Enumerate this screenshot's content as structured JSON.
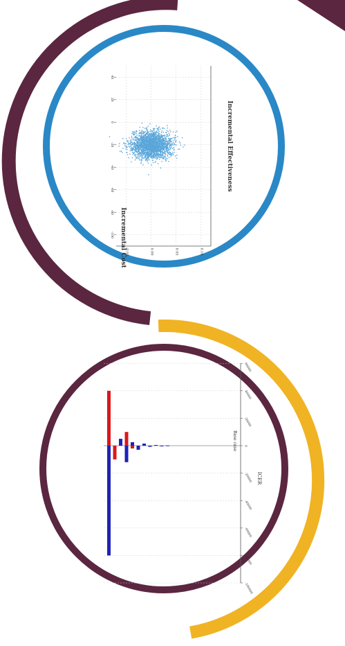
{
  "colors": {
    "ring_top_outer": "#5b2640",
    "ring_top_inner": "#2a88c6",
    "ring_bottom_outer": "#f0b323",
    "ring_bottom_inner": "#5b2640",
    "scatter_point": "#5aa6da",
    "bar_red": "#d7191c",
    "bar_blue": "#1f22b4",
    "grid": "#d0d0d0",
    "axis": "#555555"
  },
  "chart_data": [
    {
      "type": "scatter",
      "orientation": "rotated 90° clockwise",
      "xlabel": "Incremental Effectiveness",
      "ylabel": "Incremental Cost",
      "x_ticks": [
        "-0.05",
        "0.00",
        "0.05",
        "0.10"
      ],
      "y_ticks": [
        "-100",
        "-80",
        "-60",
        "-40",
        "-20",
        "0",
        "20",
        "40"
      ],
      "xlim": [
        -0.07,
        0.12
      ],
      "ylim": [
        -110,
        50
      ],
      "cloud": {
        "center_x": 0.0,
        "center_y": -20,
        "sd_x": 0.02,
        "sd_y": 6,
        "n_points": 2200
      },
      "grid": true
    },
    {
      "type": "bar",
      "subtype": "tornado",
      "orientation": "rotated 90° clockwise",
      "value_axis_label": "ICER",
      "baseline_label": "Base case",
      "baseline": 0,
      "value_ticks": [
        "-100000",
        "-80000",
        "-60000",
        "-40000",
        "-20000",
        "0",
        "20000",
        "40000",
        "60000"
      ],
      "series": [
        {
          "name": "red",
          "values": [
            40000,
            -10000,
            10000,
            -2000
          ]
        },
        {
          "name": "blue",
          "values": [
            -80000,
            5000,
            -12000,
            2500,
            -3000,
            1500,
            -800,
            500,
            -300,
            200
          ]
        }
      ],
      "grid": true
    }
  ]
}
